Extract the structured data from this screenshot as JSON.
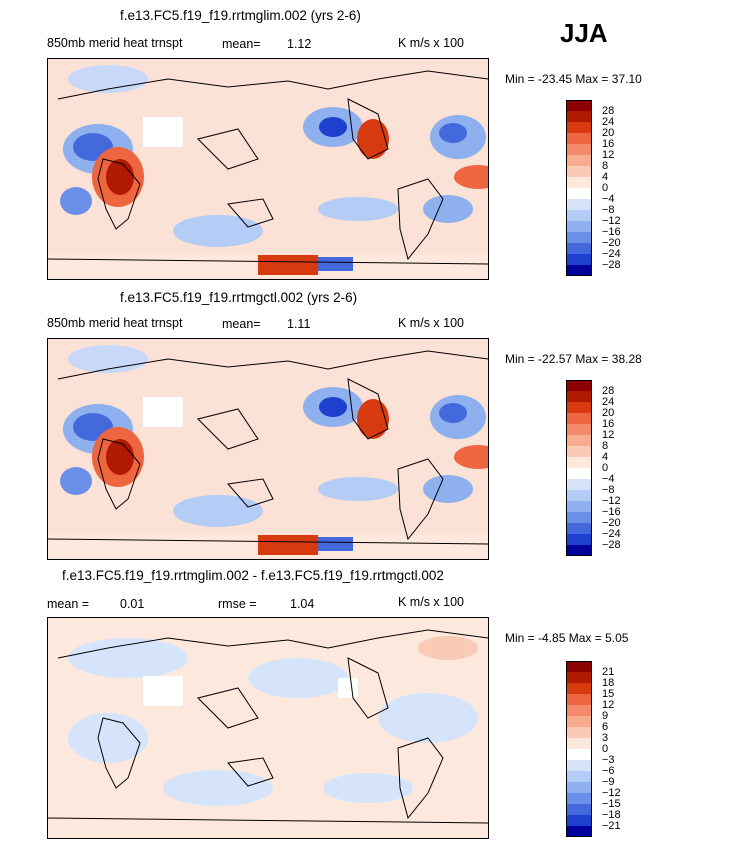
{
  "season": "JJA",
  "units": "K m/s x 100",
  "panels": [
    {
      "title": "f.e13.FC5.f19_f19.rrtmglim.002 (yrs 2-6)",
      "subtitle": "850mb merid heat trnspt",
      "stat1_label": "mean=",
      "stat1_value": "1.12",
      "stat2_label": "",
      "stat2_value": "",
      "min_label": "Min =",
      "min_value": "-23.45",
      "max_label": "Max =",
      "max_value": "37.10"
    },
    {
      "title": "f.e13.FC5.f19_f19.rrtmgctl.002 (yrs 2-6)",
      "subtitle": "850mb merid heat trnspt",
      "stat1_label": "mean=",
      "stat1_value": "1.11",
      "stat2_label": "",
      "stat2_value": "",
      "min_label": "Min =",
      "min_value": "-22.57",
      "max_label": "Max =",
      "max_value": "38.28"
    },
    {
      "title": "f.e13.FC5.f19_f19.rrtmglim.002 - f.e13.FC5.f19_f19.rrtmgctl.002",
      "subtitle": "",
      "stat1_label": "mean =",
      "stat1_value": "0.01",
      "stat2_label": "rmse =",
      "stat2_value": "1.04",
      "min_label": "Min =",
      "min_value": "-4.85",
      "max_label": "Max =",
      "max_value": "5.05"
    }
  ],
  "chart_data": [
    {
      "type": "heatmap",
      "title": "f.e13.FC5.f19_f19.rrtmglim.002 (yrs 2-6)",
      "variable": "850mb merid heat trnspt",
      "units": "K m/s x 100",
      "mean": 1.12,
      "min": -23.45,
      "max": 37.1,
      "colorbar_levels": [
        28,
        24,
        20,
        16,
        12,
        8,
        4,
        0,
        -4,
        -8,
        -12,
        -16,
        -20,
        -24,
        -28
      ],
      "colors": [
        "#8b0000",
        "#b01a00",
        "#d83a10",
        "#ee6640",
        "#f48a6a",
        "#f7ab8f",
        "#f9cbb6",
        "#fde8dd",
        "#ffffff",
        "#d6e4fb",
        "#b3cdf6",
        "#8fb0ef",
        "#6a8fe6",
        "#4469dc",
        "#1f3fcf",
        "#00009c"
      ]
    },
    {
      "type": "heatmap",
      "title": "f.e13.FC5.f19_f19.rrtmgctl.002 (yrs 2-6)",
      "variable": "850mb merid heat trnspt",
      "units": "K m/s x 100",
      "mean": 1.11,
      "min": -22.57,
      "max": 38.28,
      "colorbar_levels": [
        28,
        24,
        20,
        16,
        12,
        8,
        4,
        0,
        -4,
        -8,
        -12,
        -16,
        -20,
        -24,
        -28
      ],
      "colors": [
        "#8b0000",
        "#b01a00",
        "#d83a10",
        "#ee6640",
        "#f48a6a",
        "#f7ab8f",
        "#f9cbb6",
        "#fde8dd",
        "#ffffff",
        "#d6e4fb",
        "#b3cdf6",
        "#8fb0ef",
        "#6a8fe6",
        "#4469dc",
        "#1f3fcf",
        "#00009c"
      ]
    },
    {
      "type": "heatmap",
      "title": "f.e13.FC5.f19_f19.rrtmglim.002 - f.e13.FC5.f19_f19.rrtmgctl.002",
      "units": "K m/s x 100",
      "mean": 0.01,
      "rmse": 1.04,
      "min": -4.85,
      "max": 5.05,
      "colorbar_levels": [
        21,
        18,
        15,
        12,
        9,
        6,
        3,
        0,
        -3,
        -6,
        -9,
        -12,
        -15,
        -18,
        -21
      ],
      "colors": [
        "#8b0000",
        "#b01a00",
        "#d83a10",
        "#ee6640",
        "#f48a6a",
        "#f7ab8f",
        "#f9cbb6",
        "#fde8dd",
        "#ffffff",
        "#d6e4fb",
        "#b3cdf6",
        "#8fb0ef",
        "#6a8fe6",
        "#4469dc",
        "#1f3fcf",
        "#00009c"
      ]
    }
  ]
}
